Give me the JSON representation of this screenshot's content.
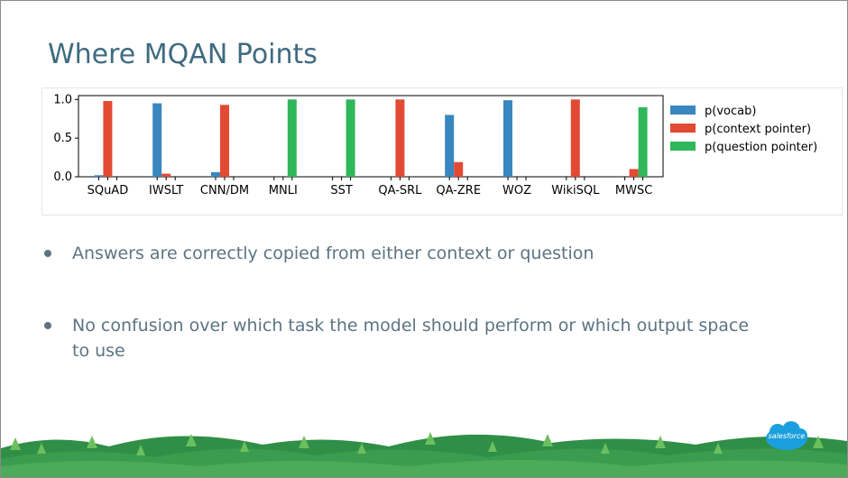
{
  "slide": {
    "title": "Where MQAN Points",
    "bullets": [
      "Answers are correctly copied from either context or question",
      "No confusion over which task the model should perform or which output space",
      "to use"
    ],
    "logo_text": "salesforce"
  },
  "colors": {
    "vocab": "#3a86bf",
    "context": "#e24a33",
    "question": "#2fb75a",
    "title": "#3f6b80",
    "bullet_text": "#5c7482",
    "logo": "#1a9fdc"
  },
  "chart_data": {
    "type": "bar",
    "categories": [
      "SQuAD",
      "IWSLT",
      "CNN/DM",
      "MNLI",
      "SST",
      "QA-SRL",
      "QA-ZRE",
      "WOZ",
      "WikiSQL",
      "MWSC"
    ],
    "series": [
      {
        "name": "p(vocab)",
        "values": [
          0.02,
          0.95,
          0.06,
          0.0,
          0.0,
          0.0,
          0.8,
          0.99,
          0.0,
          0.0
        ]
      },
      {
        "name": "p(context pointer)",
        "values": [
          0.98,
          0.04,
          0.93,
          0.0,
          0.0,
          1.0,
          0.19,
          0.0,
          1.0,
          0.1
        ]
      },
      {
        "name": "p(question pointer)",
        "values": [
          0.0,
          0.0,
          0.0,
          1.0,
          1.0,
          0.0,
          0.0,
          0.0,
          0.0,
          0.9
        ]
      }
    ],
    "yticks": [
      "0.0",
      "0.5",
      "1.0"
    ],
    "ylim": [
      0,
      1.05
    ],
    "legend": "right"
  }
}
